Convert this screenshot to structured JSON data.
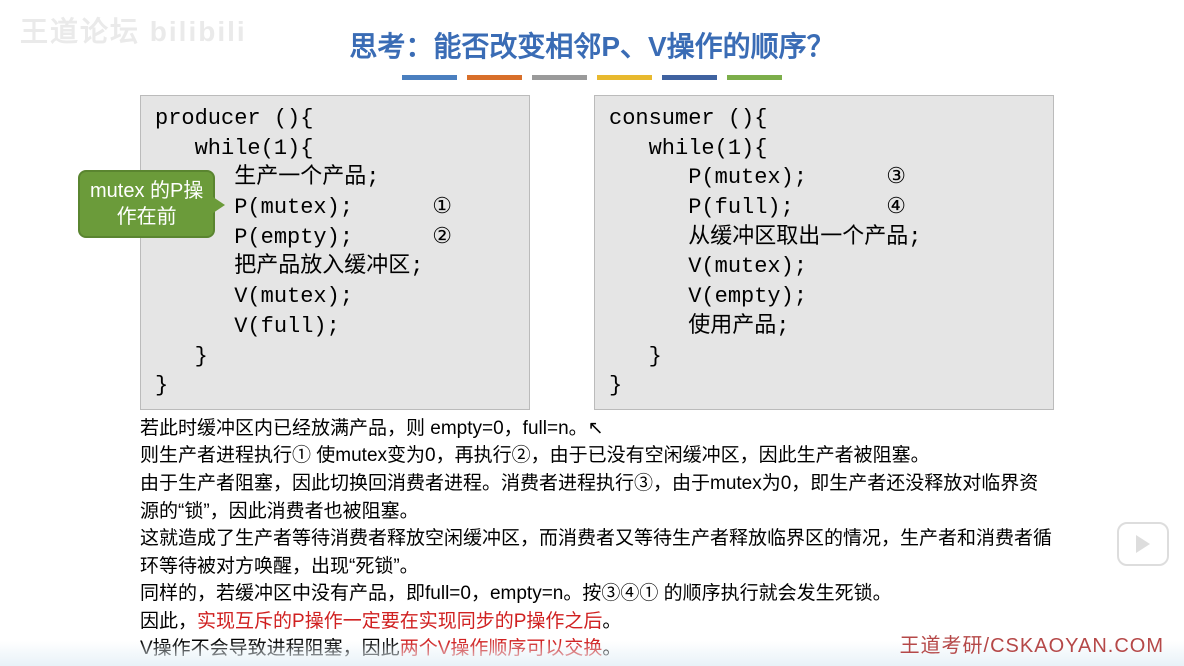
{
  "watermark": "王道论坛 bilibili",
  "title": "思考：能否改变相邻P、V操作的顺序？",
  "title_color": "#3a6cb5",
  "bars": [
    "#4a7fbf",
    "#d86f2a",
    "#9a9a9a",
    "#e8b92e",
    "#3f62a0",
    "#7cae4a"
  ],
  "badge": {
    "line1": "mutex 的P操",
    "line2": "作在前",
    "bg": "#6b9b3a"
  },
  "producer": {
    "header": "producer (){",
    "lines": [
      "   while(1){",
      "      生产一个产品;",
      "      P(mutex);      ①",
      "      P(empty);      ②",
      "      把产品放入缓冲区;",
      "      V(mutex);",
      "      V(full);",
      "   }",
      "}"
    ]
  },
  "consumer": {
    "header": "consumer (){",
    "lines": [
      "   while(1){",
      "      P(mutex);      ③",
      "      P(full);       ④",
      "      从缓冲区取出一个产品;",
      "      V(mutex);",
      "      V(empty);",
      "      使用产品;",
      "   }",
      "}"
    ]
  },
  "explain": {
    "p1": "若此时缓冲区内已经放满产品，则 empty=0，full=n。",
    "p2": "则生产者进程执行① 使mutex变为0，再执行②，由于已没有空闲缓冲区，因此生产者被阻塞。",
    "p3": "由于生产者阻塞，因此切换回消费者进程。消费者进程执行③，由于mutex为0，即生产者还没释放对临界资源的“锁”，因此消费者也被阻塞。",
    "p4": "这就造成了生产者等待消费者释放空闲缓冲区，而消费者又等待生产者释放临界区的情况，生产者和消费者循环等待被对方唤醒，出现“死锁”。",
    "p5": "同样的，若缓冲区中没有产品，即full=0，empty=n。按③④① 的顺序执行就会发生死锁。",
    "p6_a": "因此，",
    "p6_b": "实现互斥的P操作一定要在实现同步的P操作之后",
    "p6_c": "。",
    "p7_a": "V操作不会导致进程阻塞，因此",
    "p7_b": "两个V操作顺序可以交换",
    "p7_c": "。"
  },
  "footer": "王道考研/CSKAOYAN.COM",
  "colors": {
    "red": "#d02020",
    "code_bg": "#e5e5e5"
  }
}
